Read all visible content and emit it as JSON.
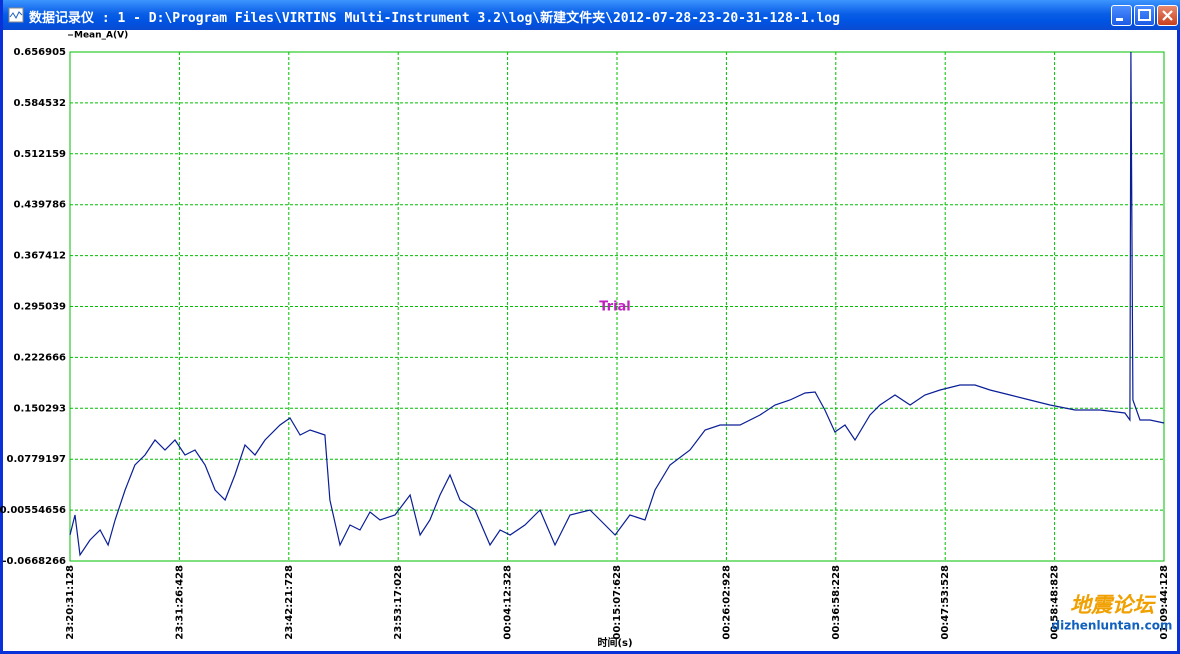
{
  "window": {
    "title": "数据记录仪 : 1 - D:\\Program Files\\VIRTINS Multi-Instrument 3.2\\log\\新建文件夹\\2012-07-28-23-20-31-128-1.log"
  },
  "watermark": {
    "text": "地震论坛",
    "url": "dizhenluntan.com"
  },
  "chart_data": {
    "type": "line",
    "annotation": "Trial",
    "x_label": "时间(s)",
    "grid": true,
    "grid_color": "#00c000",
    "xlim": [
      0,
      6553
    ],
    "xticks": [
      {
        "value": 0,
        "label": "23:20:31:128"
      },
      {
        "value": 655.3,
        "label": "23:31:26:428"
      },
      {
        "value": 1310.6,
        "label": "23:42:21:728"
      },
      {
        "value": 1965.9,
        "label": "23:53:17:028"
      },
      {
        "value": 2621.2,
        "label": "00:04:12:328"
      },
      {
        "value": 3276.5,
        "label": "00:15:07:628"
      },
      {
        "value": 3931.8,
        "label": "00:26:02:928"
      },
      {
        "value": 4587.1,
        "label": "00:36:58:228"
      },
      {
        "value": 5242.4,
        "label": "00:47:53:528"
      },
      {
        "value": 5897.7,
        "label": "00:58:48:828"
      },
      {
        "value": 6553,
        "label": "01:09:44:128"
      }
    ],
    "ylim": [
      -0.0668266,
      0.656905
    ],
    "yticks": [
      -0.0668266,
      0.00554656,
      0.0779197,
      0.150293,
      0.222666,
      0.295039,
      0.367412,
      0.439786,
      0.512159,
      0.584532,
      0.656905
    ],
    "x": [
      0,
      30,
      60,
      120,
      180,
      228,
      270,
      330,
      389,
      449,
      509,
      569,
      629,
      689,
      749,
      809,
      869,
      929,
      988,
      1048,
      1108,
      1168,
      1258,
      1318,
      1378,
      1438,
      1527,
      1557,
      1617,
      1677,
      1737,
      1797,
      1857,
      1947,
      2037,
      2097,
      2156,
      2216,
      2276,
      2336,
      2426,
      2516,
      2576,
      2636,
      2725,
      2815,
      2905,
      2995,
      3115,
      3175,
      3265,
      3354,
      3444,
      3504,
      3594,
      3714,
      3804,
      3894,
      4013,
      4133,
      4223,
      4313,
      4403,
      4463,
      4522,
      4582,
      4642,
      4702,
      4792,
      4852,
      4942,
      5032,
      5121,
      5211,
      5331,
      5421,
      5511,
      5631,
      5750,
      5870,
      6020,
      6170,
      6319,
      6349,
      6355,
      6367,
      6409,
      6469,
      6553
    ],
    "series": [
      {
        "name": "Mean_A(V)",
        "color": "#0a1e96",
        "values": [
          -0.0299,
          -0.0014,
          -0.0583,
          -0.037,
          -0.0228,
          -0.0441,
          -0.0085,
          0.0341,
          0.0697,
          0.0839,
          0.1052,
          0.091,
          0.1052,
          0.0839,
          0.091,
          0.0697,
          0.0341,
          0.0199,
          0.0554,
          0.0981,
          0.0839,
          0.1052,
          0.1265,
          0.1365,
          0.1123,
          0.1194,
          0.1123,
          0.0199,
          -0.0441,
          -0.0157,
          -0.0228,
          0.0028,
          -0.0085,
          -0.0014,
          0.027,
          -0.0299,
          -0.0085,
          0.027,
          0.0554,
          0.0199,
          0.0057,
          -0.0441,
          -0.0228,
          -0.0299,
          -0.0157,
          0.0057,
          -0.0441,
          -0.0014,
          0.0057,
          -0.0085,
          -0.0299,
          -0.0014,
          -0.0085,
          0.0341,
          0.0697,
          0.091,
          0.1194,
          0.1265,
          0.1265,
          0.1408,
          0.155,
          0.1621,
          0.172,
          0.1735,
          0.1479,
          0.1166,
          0.1265,
          0.1052,
          0.1408,
          0.155,
          0.1692,
          0.155,
          0.1692,
          0.1763,
          0.1834,
          0.1834,
          0.1763,
          0.1692,
          0.1621,
          0.155,
          0.1479,
          0.1479,
          0.1436,
          0.1336,
          0.6569,
          0.1621,
          0.1336,
          0.1336,
          0.1294
        ]
      }
    ]
  }
}
